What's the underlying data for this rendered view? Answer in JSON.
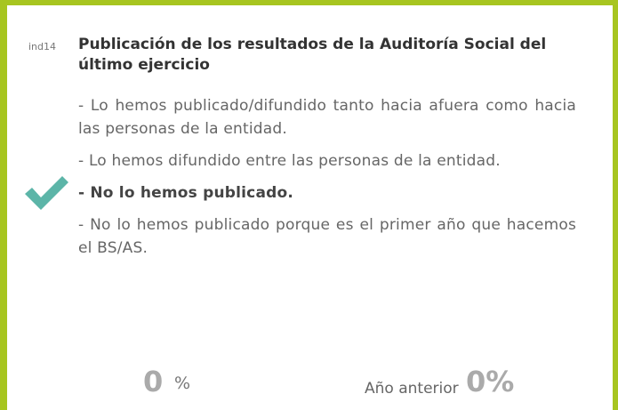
{
  "indicator": {
    "code": "ind14",
    "title": "Publicación de los resultados de la Auditoría Social del último ejercicio",
    "options": [
      "- Lo hemos publicado/difundido tanto hacia afuera como hacia las personas de la entidad.",
      "- Lo hemos difundido entre las personas de la entidad.",
      "- No lo hemos publicado.",
      "- No lo hemos publicado porque es el primer año que hacemos el BS/AS."
    ],
    "selected": 2
  },
  "result": {
    "value": "0",
    "unit": "%",
    "previous_label": "Año anterior",
    "previous_value": "0%"
  }
}
